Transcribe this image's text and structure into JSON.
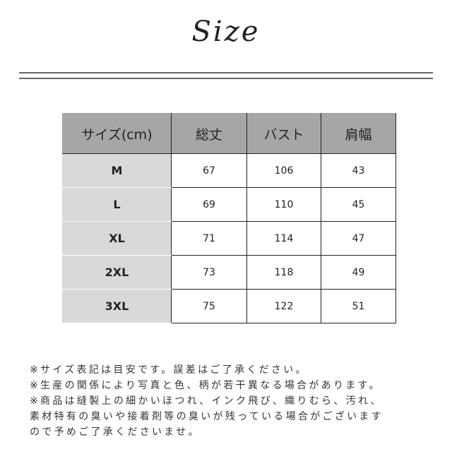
{
  "title": "Size",
  "table": {
    "headers": [
      "サイズ(cm)",
      "総丈",
      "バスト",
      "肩幅"
    ],
    "rows": [
      [
        "M",
        "67",
        "106",
        "43"
      ],
      [
        "L",
        "69",
        "110",
        "45"
      ],
      [
        "XL",
        "71",
        "114",
        "47"
      ],
      [
        "2XL",
        "73",
        "118",
        "49"
      ],
      [
        "3XL",
        "75",
        "122",
        "51"
      ]
    ]
  },
  "notes": [
    "※サイズ表記は目安です。誤差はご了承ください。",
    "※生産の関係により写真と色、柄が若干異なる場合があります。",
    "※商品は縫製上の細かいほつれ、インク飛び、織りむら、汚れ、",
    "素材特有の臭いや接着剤等の臭いが残っている場合がございます",
    "ので予めご了承くださいませ。"
  ]
}
